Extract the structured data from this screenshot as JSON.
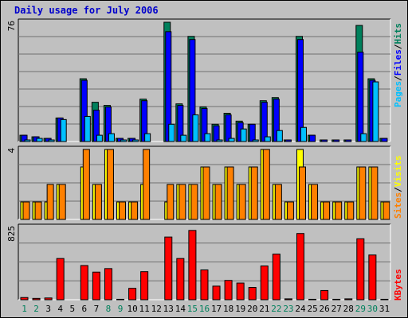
{
  "title": "Daily usage for July 2006",
  "colors": {
    "hits": "#00805C",
    "files": "#0000FF",
    "pages": "#00C0FF",
    "visits": "#FFFF00",
    "sites": "#FF8000",
    "kbytes": "#FF0000",
    "weekend_day": "#00805C",
    "weekday": "#000000"
  },
  "legend": {
    "pages": "Pages",
    "files": "Files",
    "hits": "Hits",
    "sites": "Sites",
    "visits": "Visits",
    "kbytes": "KBytes",
    "sep": "/"
  },
  "axis_max": {
    "hits": "76",
    "visits": "4",
    "kbytes": "825"
  },
  "chart_data": {
    "type": "bar",
    "title": "Daily usage for July 2006",
    "categories": [
      "1",
      "2",
      "3",
      "4",
      "5",
      "6",
      "7",
      "8",
      "9",
      "10",
      "11",
      "12",
      "13",
      "14",
      "15",
      "16",
      "17",
      "18",
      "19",
      "20",
      "21",
      "22",
      "23",
      "24",
      "25",
      "26",
      "27",
      "28",
      "29",
      "30",
      "31"
    ],
    "weekend_days": [
      1,
      2,
      8,
      9,
      15,
      16,
      22,
      23,
      29,
      30
    ],
    "panels": [
      {
        "name": "hits_files_pages",
        "ylim": [
          0,
          76
        ],
        "series": [
          {
            "name": "Hits",
            "values": [
              4,
              3,
              2,
              15,
              0,
              40,
              25,
              23,
              2,
              2,
              27,
              0,
              76,
              24,
              67,
              22,
              11,
              18,
              13,
              11,
              26,
              28,
              1,
              67,
              4,
              1,
              1,
              1,
              74,
              40,
              2
            ]
          },
          {
            "name": "Files",
            "values": [
              4,
              3,
              2,
              15,
              0,
              39,
              20,
              22,
              2,
              2,
              26,
              0,
              70,
              23,
              65,
              21,
              10,
              17,
              12,
              11,
              25,
              27,
              1,
              65,
              4,
              1,
              1,
              1,
              57,
              39,
              2
            ]
          },
          {
            "name": "Pages",
            "values": [
              1,
              2,
              1,
              14,
              0,
              16,
              4,
              5,
              1,
              1,
              5,
              0,
              11,
              4,
              17,
              5,
              1,
              2,
              8,
              1,
              3,
              7,
              0,
              9,
              0,
              0,
              0,
              0,
              5,
              38,
              0
            ]
          }
        ]
      },
      {
        "name": "visits_sites",
        "ylim": [
          0,
          4
        ],
        "series": [
          {
            "name": "Visits",
            "values": [
              1,
              1,
              1,
              2,
              0,
              3,
              2,
              4,
              1,
              1,
              2,
              0,
              1,
              2,
              2,
              3,
              2,
              3,
              2,
              3,
              4,
              2,
              1,
              4,
              2,
              1,
              1,
              1,
              3,
              3,
              1
            ]
          },
          {
            "name": "Sites",
            "values": [
              1,
              1,
              2,
              2,
              0,
              4,
              2,
              4,
              1,
              1,
              4,
              0,
              2,
              2,
              2,
              3,
              2,
              3,
              2,
              3,
              4,
              2,
              1,
              3,
              2,
              1,
              1,
              1,
              3,
              3,
              1
            ]
          }
        ]
      },
      {
        "name": "kbytes",
        "ylim": [
          0,
          825
        ],
        "series": [
          {
            "name": "KBytes",
            "values": [
              25,
              15,
              20,
              470,
              0,
              390,
              315,
              355,
              5,
              130,
              320,
              0,
              715,
              470,
              790,
              340,
              155,
              220,
              190,
              140,
              385,
              520,
              10,
              755,
              5,
              105,
              5,
              10,
              695,
              510,
              5
            ]
          }
        ]
      }
    ]
  }
}
